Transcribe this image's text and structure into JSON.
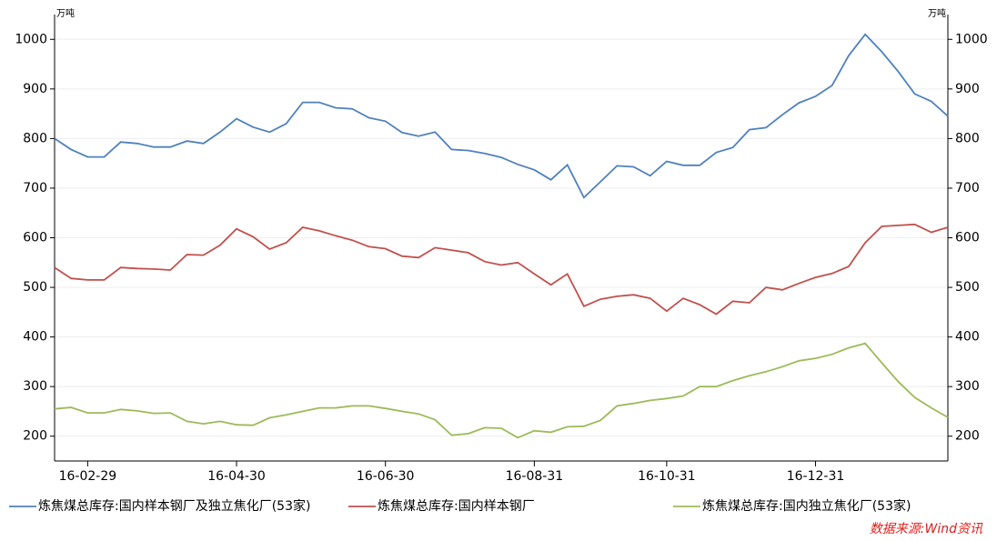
{
  "chart_data": {
    "type": "line",
    "y_unit": "万吨",
    "y2_unit": "万吨",
    "source": "数据来源:Wind资讯",
    "categories": [
      null,
      null,
      "16-02-29",
      null,
      null,
      null,
      null,
      null,
      null,
      null,
      null,
      "16-04-30",
      null,
      null,
      null,
      null,
      null,
      null,
      null,
      null,
      "16-06-30",
      null,
      null,
      null,
      null,
      null,
      null,
      null,
      null,
      "16-08-31",
      null,
      null,
      null,
      null,
      null,
      null,
      null,
      "16-10-31",
      null,
      null,
      null,
      null,
      null,
      null,
      null,
      null,
      "16-12-31",
      null,
      null,
      null,
      null,
      null,
      null,
      null,
      null
    ],
    "series": [
      {
        "name": "炼焦煤总库存:国内样本钢厂及独立焦化厂(53家)",
        "color": "#4f81bd",
        "values": [
          800,
          778,
          763,
          763,
          793,
          790,
          783,
          783,
          795,
          790,
          813,
          840,
          823,
          813,
          830,
          873,
          873,
          862,
          860,
          842,
          835,
          812,
          805,
          813,
          778,
          776,
          770,
          762,
          748,
          737,
          717,
          747,
          681,
          713,
          745,
          743,
          725,
          754,
          746,
          746,
          772,
          782,
          818,
          822,
          848,
          872,
          885,
          907,
          967,
          1010,
          975,
          935,
          890,
          875,
          845
        ]
      },
      {
        "name": "炼焦煤总库存:国内样本钢厂",
        "color": "#c0504d",
        "values": [
          540,
          518,
          515,
          515,
          540,
          538,
          537,
          535,
          566,
          565,
          585,
          618,
          602,
          577,
          590,
          621,
          614,
          604,
          595,
          582,
          578,
          563,
          560,
          580,
          575,
          570,
          552,
          545,
          550,
          527,
          505,
          527,
          462,
          476,
          482,
          485,
          478,
          452,
          478,
          465,
          446,
          472,
          469,
          500,
          495,
          508,
          520,
          528,
          542,
          590,
          623,
          625,
          627,
          611,
          621
        ]
      },
      {
        "name": "炼焦煤总库存:国内独立焦化厂(53家)",
        "color": "#9bbb59",
        "axis": "y2",
        "values": [
          255,
          258,
          247,
          247,
          254,
          251,
          246,
          247,
          230,
          225,
          230,
          223,
          222,
          237,
          243,
          250,
          257,
          257,
          261,
          261,
          256,
          250,
          245,
          233,
          202,
          205,
          217,
          216,
          197,
          211,
          208,
          219,
          220,
          232,
          261,
          266,
          272,
          276,
          281,
          300,
          300,
          312,
          322,
          330,
          340,
          352,
          357,
          365,
          378,
          387,
          348,
          310,
          278,
          257,
          238
        ]
      }
    ],
    "ylim": [
      150,
      1050
    ],
    "yticks": [
      200,
      300,
      400,
      500,
      600,
      700,
      800,
      900,
      1000
    ],
    "y2lim": [
      150,
      1050
    ],
    "y2ticks": [
      200,
      300,
      400,
      500,
      600,
      700,
      800,
      900,
      1000
    ],
    "grid": true
  }
}
